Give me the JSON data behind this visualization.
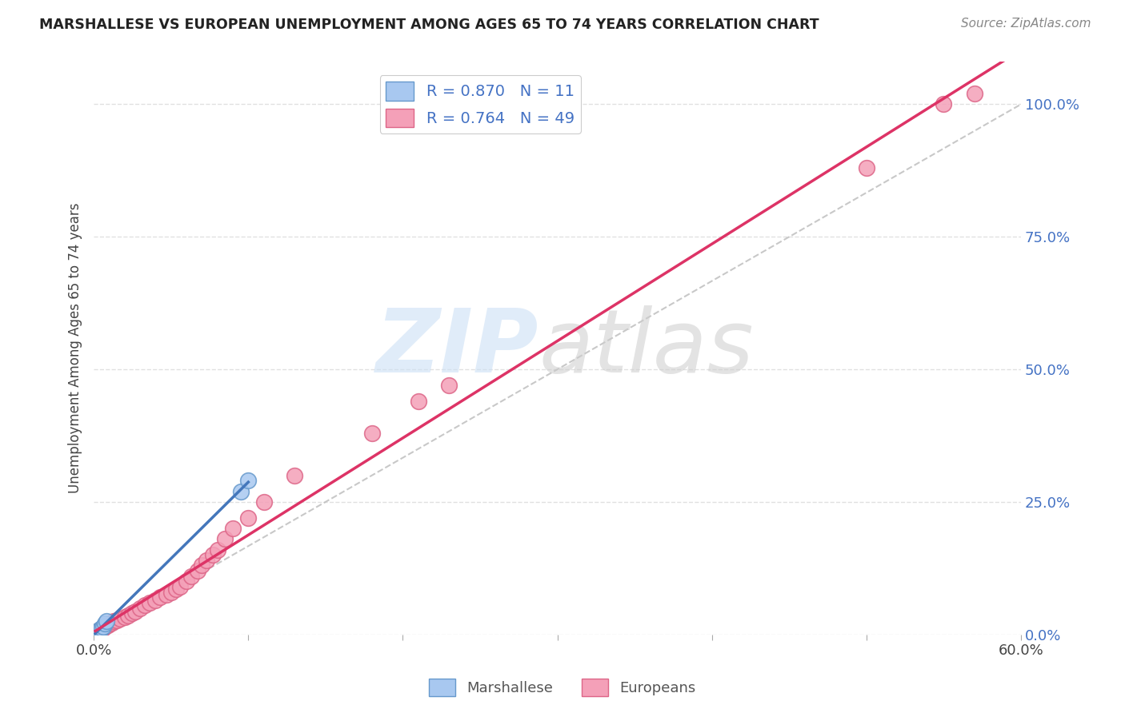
{
  "title": "MARSHALLESE VS EUROPEAN UNEMPLOYMENT AMONG AGES 65 TO 74 YEARS CORRELATION CHART",
  "source": "Source: ZipAtlas.com",
  "ylabel": "Unemployment Among Ages 65 to 74 years",
  "xlim": [
    0.0,
    0.6
  ],
  "ylim": [
    0.0,
    1.08
  ],
  "xticks": [
    0.0,
    0.1,
    0.2,
    0.3,
    0.4,
    0.5,
    0.6
  ],
  "xticklabels": [
    "0.0%",
    "",
    "",
    "",
    "",
    "",
    "60.0%"
  ],
  "yticks_right": [
    0.0,
    0.25,
    0.5,
    0.75,
    1.0
  ],
  "ytick_right_labels": [
    "0.0%",
    "25.0%",
    "50.0%",
    "75.0%",
    "100.0%"
  ],
  "marshallese_color": "#A8C8F0",
  "european_color": "#F4A0B8",
  "marshallese_edge": "#6699CC",
  "european_edge": "#DD6688",
  "regression_marshallese_color": "#4477BB",
  "regression_european_color": "#DD3366",
  "reference_line_color": "#BBBBBB",
  "R_marshallese": 0.87,
  "N_marshallese": 11,
  "R_european": 0.764,
  "N_european": 49,
  "legend_label_marshallese": "Marshallese",
  "legend_label_european": "Europeans",
  "background_color": "#FFFFFF",
  "grid_color": "#DDDDDD",
  "marshallese_x": [
    0.001,
    0.001,
    0.002,
    0.003,
    0.004,
    0.005,
    0.006,
    0.007,
    0.008,
    0.095,
    0.1
  ],
  "marshallese_y": [
    0.001,
    0.003,
    0.005,
    0.007,
    0.01,
    0.012,
    0.015,
    0.02,
    0.025,
    0.27,
    0.29
  ],
  "european_x": [
    0.001,
    0.001,
    0.001,
    0.002,
    0.002,
    0.003,
    0.003,
    0.004,
    0.005,
    0.006,
    0.007,
    0.008,
    0.009,
    0.01,
    0.012,
    0.013,
    0.015,
    0.017,
    0.02,
    0.022,
    0.025,
    0.027,
    0.03,
    0.033,
    0.036,
    0.04,
    0.043,
    0.047,
    0.05,
    0.053,
    0.056,
    0.06,
    0.063,
    0.067,
    0.07,
    0.073,
    0.077,
    0.08,
    0.085,
    0.09,
    0.1,
    0.11,
    0.13,
    0.18,
    0.21,
    0.23,
    0.5,
    0.55,
    0.57
  ],
  "european_y": [
    0.001,
    0.002,
    0.003,
    0.003,
    0.005,
    0.005,
    0.007,
    0.008,
    0.01,
    0.012,
    0.015,
    0.017,
    0.018,
    0.02,
    0.022,
    0.025,
    0.027,
    0.03,
    0.033,
    0.036,
    0.04,
    0.043,
    0.05,
    0.055,
    0.06,
    0.065,
    0.07,
    0.075,
    0.08,
    0.085,
    0.09,
    0.1,
    0.11,
    0.12,
    0.13,
    0.14,
    0.15,
    0.16,
    0.18,
    0.2,
    0.22,
    0.25,
    0.3,
    0.38,
    0.44,
    0.47,
    0.88,
    1.0,
    1.02
  ]
}
